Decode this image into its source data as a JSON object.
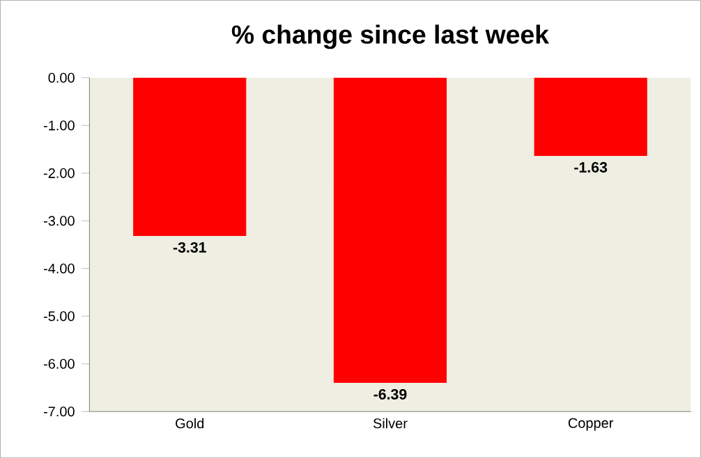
{
  "chart_data": {
    "type": "bar",
    "title": "% change since last week",
    "categories": [
      "Gold",
      "Silver",
      "Copper"
    ],
    "values": [
      -3.31,
      -6.39,
      -1.63
    ],
    "color": "#ff0000",
    "ylim": [
      -7,
      0
    ],
    "yticks": [
      {
        "value": 0,
        "label": "0.00"
      },
      {
        "value": -1,
        "label": "-1.00"
      },
      {
        "value": -2,
        "label": "-2.00"
      },
      {
        "value": -3,
        "label": "-3.00"
      },
      {
        "value": -4,
        "label": "-4.00"
      },
      {
        "value": -5,
        "label": "-5.00"
      },
      {
        "value": -6,
        "label": "-6.00"
      },
      {
        "value": -7,
        "label": "-7.00"
      }
    ],
    "data_labels": true
  }
}
